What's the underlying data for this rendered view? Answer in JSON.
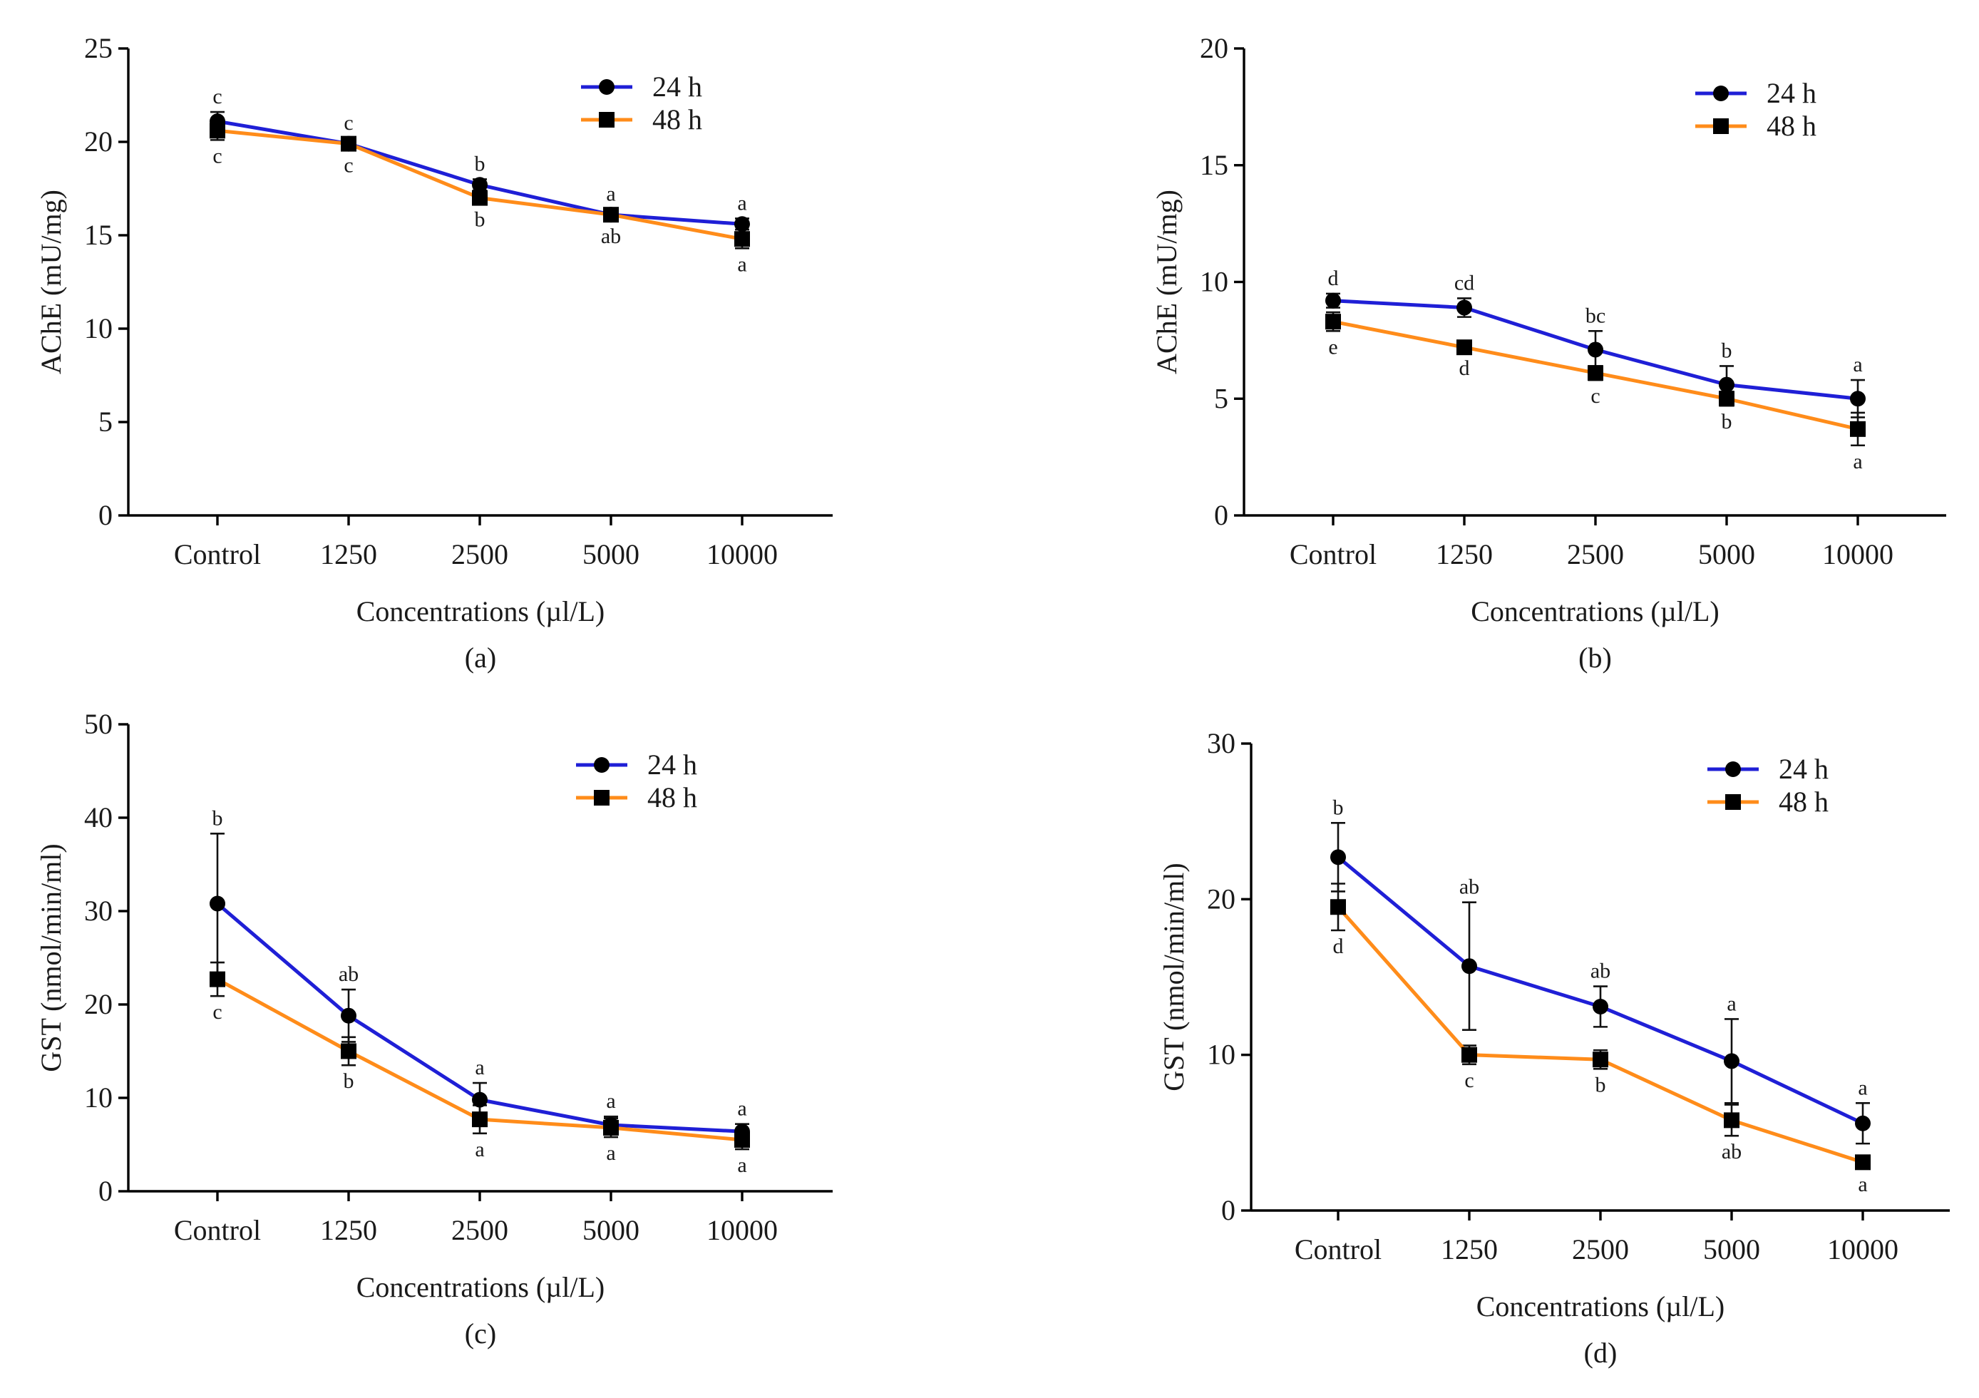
{
  "figure": {
    "series_names": [
      "24 h",
      "48 h"
    ],
    "colors": {
      "s24": "#1f1fd6",
      "s48": "#ff8c1a",
      "marker": "#000000"
    }
  },
  "chart_data": [
    {
      "type": "line",
      "panel_label": "(a)",
      "title": "",
      "xlabel": "Concentrations (µl/L)",
      "ylabel": "AChE (mU/mg)",
      "categories": [
        "Control",
        "1250",
        "2500",
        "5000",
        "10000"
      ],
      "ylim": [
        0,
        25
      ],
      "yticks": [
        0,
        5,
        10,
        15,
        20,
        25
      ],
      "legend_position": "top-right",
      "series": [
        {
          "name": "24 h",
          "values": [
            21.1,
            19.9,
            17.7,
            16.1,
            15.6
          ],
          "errors": [
            0.5,
            0.3,
            0.3,
            0.3,
            0.3
          ],
          "letters": [
            "c",
            "c",
            "b",
            "a",
            "a"
          ]
        },
        {
          "name": "48 h",
          "values": [
            20.6,
            19.9,
            17.0,
            16.1,
            14.8
          ],
          "errors": [
            0.5,
            0.3,
            0.3,
            0.3,
            0.5
          ],
          "letters": [
            "c",
            "c",
            "b",
            "ab",
            "a"
          ]
        }
      ]
    },
    {
      "type": "line",
      "panel_label": "(b)",
      "title": "",
      "xlabel": "Concentrations (µl/L)",
      "ylabel": "AChE (mU/mg)",
      "categories": [
        "Control",
        "1250",
        "2500",
        "5000",
        "10000"
      ],
      "ylim": [
        0,
        20
      ],
      "yticks": [
        0,
        5,
        10,
        15,
        20
      ],
      "legend_position": "top-right",
      "series": [
        {
          "name": "24 h",
          "values": [
            9.2,
            8.9,
            7.1,
            5.6,
            5.0
          ],
          "errors": [
            0.3,
            0.4,
            0.8,
            0.8,
            0.8
          ],
          "letters": [
            "d",
            "cd",
            "bc",
            "b",
            "a"
          ]
        },
        {
          "name": "48 h",
          "values": [
            8.3,
            7.2,
            6.1,
            5.0,
            3.7
          ],
          "errors": [
            0.4,
            0.2,
            0.3,
            0.3,
            0.7
          ],
          "letters": [
            "e",
            "d",
            "c",
            "b",
            "a"
          ]
        }
      ]
    },
    {
      "type": "line",
      "panel_label": "(c)",
      "title": "",
      "xlabel": "Concentrations (µl/L)",
      "ylabel": "GST (nmol/min/ml)",
      "categories": [
        "Control",
        "1250",
        "2500",
        "5000",
        "10000"
      ],
      "ylim": [
        0,
        50
      ],
      "yticks": [
        0,
        10,
        20,
        30,
        40,
        50
      ],
      "legend_position": "top-right",
      "series": [
        {
          "name": "24 h",
          "values": [
            30.8,
            18.8,
            9.8,
            7.1,
            6.4
          ],
          "errors": [
            7.5,
            2.8,
            1.8,
            0.9,
            0.8
          ],
          "letters": [
            "b",
            "ab",
            "a",
            "a",
            "a"
          ]
        },
        {
          "name": "48 h",
          "values": [
            22.7,
            15.0,
            7.7,
            6.8,
            5.5
          ],
          "errors": [
            1.8,
            1.5,
            1.5,
            1.0,
            1.0
          ],
          "letters": [
            "c",
            "b",
            "a",
            "a",
            "a"
          ]
        }
      ]
    },
    {
      "type": "line",
      "panel_label": "(d)",
      "title": "",
      "xlabel": "Concentrations (µl/L)",
      "ylabel": "GST (nmol/min/ml)",
      "categories": [
        "Control",
        "1250",
        "2500",
        "5000",
        "10000"
      ],
      "ylim": [
        0,
        30
      ],
      "yticks": [
        0,
        10,
        20,
        30
      ],
      "legend_position": "top-right",
      "series": [
        {
          "name": "24 h",
          "values": [
            22.7,
            15.7,
            13.1,
            9.6,
            5.6
          ],
          "errors": [
            2.2,
            4.1,
            1.3,
            2.7,
            1.3
          ],
          "letters": [
            "b",
            "ab",
            "ab",
            "a",
            "a"
          ]
        },
        {
          "name": "48 h",
          "values": [
            19.5,
            10.0,
            9.7,
            5.8,
            3.1
          ],
          "errors": [
            1.5,
            0.6,
            0.6,
            1.0,
            0.4
          ],
          "letters": [
            "d",
            "c",
            "b",
            "ab",
            "a"
          ]
        }
      ]
    }
  ]
}
